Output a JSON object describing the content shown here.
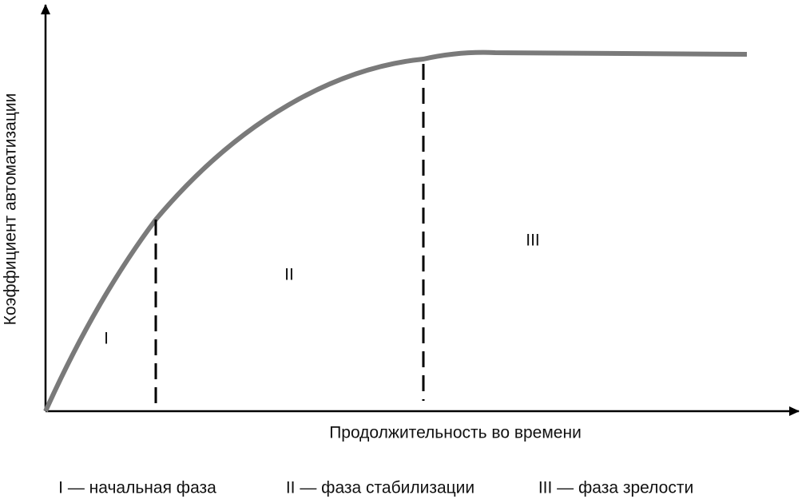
{
  "axis_labels": {
    "y": "Коэффициент автоматизации",
    "x": "Продолжительность во времени"
  },
  "phases": [
    {
      "label": "I"
    },
    {
      "label": "II"
    },
    {
      "label": "III"
    }
  ],
  "legend": [
    "I — начальная фаза",
    "II — фаза стабилизации",
    "III — фаза зрелости"
  ]
}
